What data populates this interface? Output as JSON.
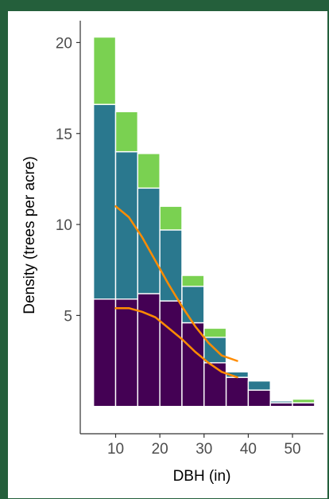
{
  "chart_data": {
    "type": "bar",
    "stacked": true,
    "title": "",
    "xlabel": "DBH (in)",
    "ylabel": "Density (trees per acre)",
    "xlim": [
      2,
      57
    ],
    "ylim": [
      -1.5,
      21.2
    ],
    "xticks": [
      10,
      20,
      30,
      40,
      50
    ],
    "yticks": [
      5,
      10,
      15,
      20
    ],
    "bar_width": 5,
    "x": [
      7.5,
      12.5,
      17.5,
      22.5,
      27.5,
      32.5,
      37.5,
      42.5,
      47.5,
      52.5
    ],
    "series": [
      {
        "color": "#440154",
        "values": [
          5.9,
          5.9,
          6.2,
          5.8,
          4.6,
          2.4,
          1.6,
          0.9,
          0.2,
          0.2
        ]
      },
      {
        "color": "#2a788e",
        "values": [
          10.7,
          8.1,
          5.8,
          3.9,
          2.0,
          1.4,
          0.3,
          0.5,
          0.1,
          0.0
        ]
      },
      {
        "color": "#7ad151",
        "values": [
          3.7,
          2.2,
          1.9,
          1.3,
          0.6,
          0.5,
          0.0,
          0.0,
          0.0,
          0.2
        ]
      }
    ],
    "trend_lines": [
      {
        "color": "#ff8c00",
        "x": [
          10,
          13,
          16,
          19,
          22,
          25,
          28,
          31,
          34,
          37.5
        ],
        "y": [
          11.0,
          10.4,
          9.3,
          8.0,
          6.7,
          5.5,
          4.4,
          3.5,
          2.8,
          2.5
        ]
      },
      {
        "color": "#ff8c00",
        "x": [
          10,
          13,
          16,
          19,
          22,
          25,
          28,
          31,
          34,
          37.5
        ],
        "y": [
          5.4,
          5.4,
          5.2,
          4.9,
          4.3,
          3.7,
          3.0,
          2.4,
          1.9,
          1.6
        ]
      }
    ],
    "grid": false,
    "legend": "none"
  }
}
